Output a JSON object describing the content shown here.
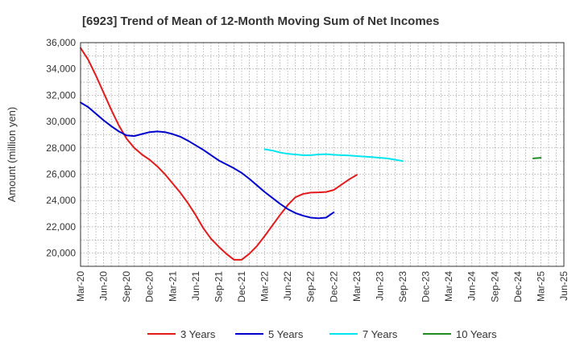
{
  "chart_data": {
    "type": "line",
    "title": "[6923]  Trend of Mean of 12-Month Moving Sum of Net Incomes",
    "xlabel": "",
    "ylabel": "Amount (million yen)",
    "ylim": [
      19000,
      36000
    ],
    "y_ticks": [
      20000,
      22000,
      24000,
      26000,
      28000,
      30000,
      32000,
      34000,
      36000
    ],
    "y_tick_labels": [
      "20,000",
      "22,000",
      "24,000",
      "26,000",
      "28,000",
      "30,000",
      "32,000",
      "34,000",
      "36,000"
    ],
    "x_ticks": [
      "Mar-20",
      "Jun-20",
      "Sep-20",
      "Dec-20",
      "Mar-21",
      "Jun-21",
      "Sep-21",
      "Dec-21",
      "Mar-22",
      "Jun-22",
      "Sep-22",
      "Dec-22",
      "Mar-23",
      "Jun-23",
      "Sep-23",
      "Dec-23",
      "Mar-24",
      "Jun-24",
      "Sep-24",
      "Dec-24",
      "Mar-25",
      "Jun-25"
    ],
    "grid": true,
    "legend_position": "bottom",
    "series": [
      {
        "name": "3 Years",
        "color": "#e31a1c",
        "start": "Mar-20",
        "values": [
          35600,
          34700,
          33500,
          32200,
          30900,
          29700,
          28700,
          28000,
          27500,
          27100,
          26600,
          26000,
          25300,
          24600,
          23800,
          22900,
          21900,
          21100,
          20500,
          19950,
          19500,
          19500,
          19950,
          20550,
          21300,
          22100,
          22900,
          23650,
          24250,
          24500,
          24600,
          24620,
          24650,
          24800,
          25200,
          25600,
          25950
        ]
      },
      {
        "name": "5 Years",
        "color": "#0000cd",
        "start": "Mar-20",
        "values": [
          31450,
          31100,
          30600,
          30100,
          29650,
          29250,
          28950,
          28900,
          29050,
          29200,
          29250,
          29200,
          29050,
          28850,
          28550,
          28200,
          27850,
          27450,
          27050,
          26750,
          26450,
          26100,
          25650,
          25150,
          24650,
          24200,
          23750,
          23350,
          23050,
          22850,
          22700,
          22650,
          22700,
          23100
        ]
      },
      {
        "name": "7 Years",
        "color": "#00e5ee",
        "start": "Mar-22",
        "values": [
          27900,
          27800,
          27650,
          27550,
          27500,
          27450,
          27450,
          27500,
          27520,
          27480,
          27450,
          27420,
          27380,
          27340,
          27300,
          27250,
          27200,
          27100,
          27000
        ]
      },
      {
        "name": "10 Years",
        "color": "#228b22",
        "start": "Feb-25",
        "values": [
          27200,
          27250
        ]
      }
    ]
  }
}
